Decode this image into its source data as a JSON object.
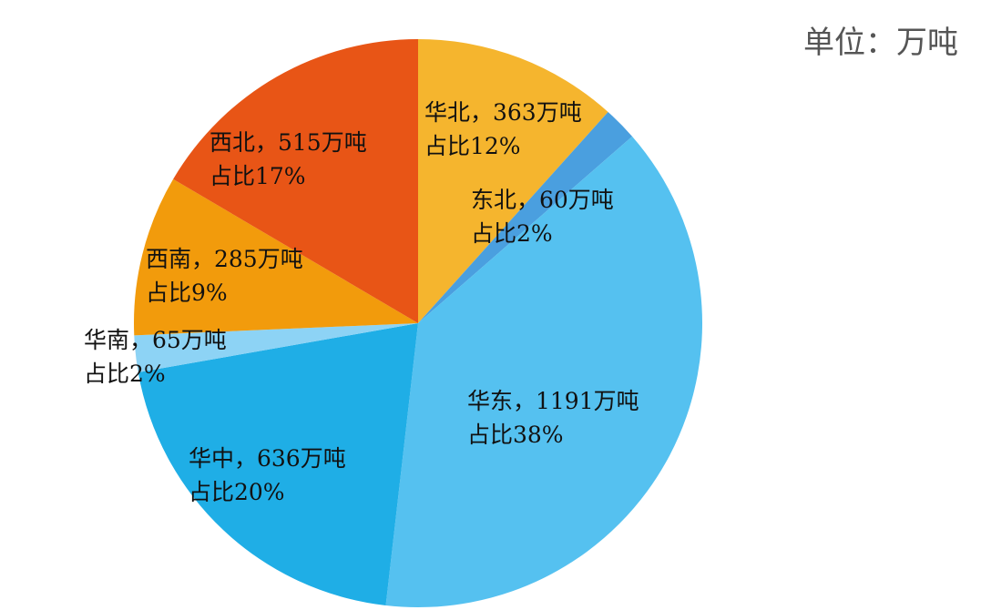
{
  "chart_data": {
    "type": "pie",
    "unit_label": "单位：万吨",
    "categories": [
      "华北",
      "东北",
      "华东",
      "华中",
      "华南",
      "西南",
      "西北"
    ],
    "values": [
      363,
      60,
      1191,
      636,
      65,
      285,
      515
    ],
    "value_labels": [
      "华北，363万吨",
      "东北，60万吨",
      "华东，1191万吨",
      "华中，636万吨",
      "华南，65万吨",
      "西南，285万吨",
      "西北，515万吨"
    ],
    "percents": [
      12,
      2,
      38,
      20,
      2,
      9,
      17
    ],
    "percent_labels": [
      "占比12%",
      "占比2%",
      "占比38%",
      "占比20%",
      "占比2%",
      "占比9%",
      "占比17%"
    ],
    "colors": [
      "#F5B52E",
      "#4A9FDF",
      "#55C1F0",
      "#1FAEE6",
      "#8DD3F5",
      "#F29B0C",
      "#E85516"
    ]
  }
}
